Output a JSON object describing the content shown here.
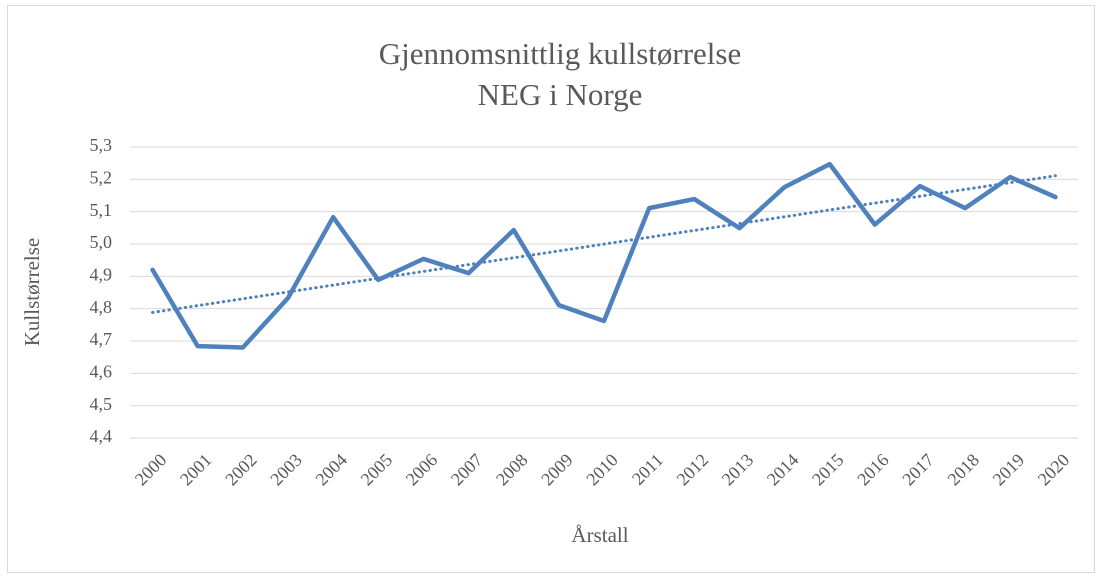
{
  "chart_data": {
    "type": "line",
    "title": [
      "Gjennomsnittlig kullstørrelse",
      "NEG i Norge"
    ],
    "y_label": "Kullstørrelse",
    "x_label": "Årstall",
    "categories": [
      "2000",
      "2001",
      "2002",
      "2003",
      "2004",
      "2005",
      "2006",
      "2007",
      "2008",
      "2009",
      "2010",
      "2011",
      "2012",
      "2013",
      "2014",
      "2015",
      "2016",
      "2017",
      "2018",
      "2019",
      "2020"
    ],
    "series": [
      {
        "color": "#4f81bd",
        "values": [
          4.92,
          4.684,
          4.68,
          4.833,
          5.083,
          4.889,
          4.954,
          4.91,
          5.043,
          4.811,
          4.762,
          5.111,
          5.139,
          5.049,
          5.176,
          5.247,
          5.06,
          5.179,
          5.111,
          5.207,
          5.145
        ]
      }
    ],
    "trendline": "linear",
    "ylim": [
      4.4,
      5.3
    ],
    "yticks": [
      {
        "value": 4.4,
        "label": "4,4"
      },
      {
        "value": 4.5,
        "label": "4,5"
      },
      {
        "value": 4.6,
        "label": "4,6"
      },
      {
        "value": 4.7,
        "label": "4,7"
      },
      {
        "value": 4.8,
        "label": "4,8"
      },
      {
        "value": 4.9,
        "label": "4,9"
      },
      {
        "value": 5.0,
        "label": "5,0"
      },
      {
        "value": 5.1,
        "label": "5,1"
      },
      {
        "value": 5.2,
        "label": "5,2"
      },
      {
        "value": 5.3,
        "label": "5,3"
      }
    ],
    "grid": true
  }
}
